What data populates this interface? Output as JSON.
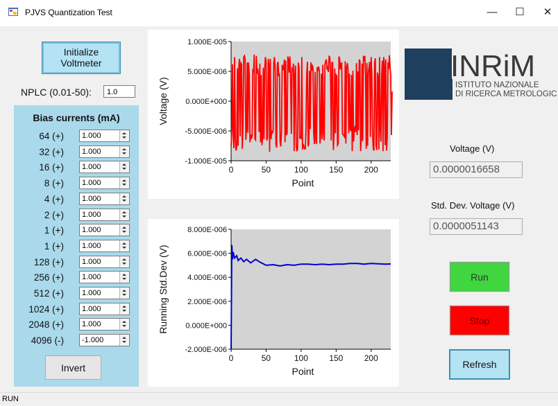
{
  "window": {
    "title": "PJVS Quantization Test",
    "minimize": "—",
    "maximize": "☐",
    "close": "✕"
  },
  "left": {
    "init_button": "Initialize Voltmeter",
    "nplc_label": "NPLC (0.01-50):",
    "nplc_value": "1.0",
    "bias_title": "Bias currents (mA)",
    "bias": [
      {
        "label": "64 (+)",
        "value": "1.000"
      },
      {
        "label": "32 (+)",
        "value": "1.000"
      },
      {
        "label": "16 (+)",
        "value": "1.000"
      },
      {
        "label": "8 (+)",
        "value": "1.000"
      },
      {
        "label": "4 (+)",
        "value": "1.000"
      },
      {
        "label": "2 (+)",
        "value": "1.000"
      },
      {
        "label": "1 (+)",
        "value": "1.000"
      },
      {
        "label": "1 (+)",
        "value": "1.000"
      },
      {
        "label": "128 (+)",
        "value": "1.000"
      },
      {
        "label": "256 (+)",
        "value": "1.000"
      },
      {
        "label": "512 (+)",
        "value": "1.000"
      },
      {
        "label": "1024 (+)",
        "value": "1.000"
      },
      {
        "label": "2048 (+)",
        "value": "1.000"
      },
      {
        "label": "4096 (-)",
        "value": "-1.000"
      }
    ],
    "invert_button": "Invert"
  },
  "right": {
    "logo_text": "INRiM",
    "logo_sub1": "ISTITUTO NAZIONALE",
    "logo_sub2": "DI RICERCA METROLOGICA",
    "voltage_label": "Voltage (V)",
    "voltage_value": "0.0000016658",
    "std_label": "Std. Dev. Voltage (V)",
    "std_value": "0.0000051143",
    "run_button": "Run",
    "stop_button": "Stop",
    "refresh_button": "Refresh"
  },
  "status": {
    "text": "RUN"
  },
  "colors": {
    "voltage_series": "#ff0000",
    "std_series": "#0000cc",
    "plot_bg": "#d3d3d3",
    "panel": "#a9d9eb"
  },
  "chart_data": [
    {
      "type": "line",
      "xlabel": "Point",
      "ylabel": "Voltage (V)",
      "xlim": [
        0,
        228
      ],
      "ylim": [
        -1e-05,
        1e-05
      ],
      "xticks": [
        0,
        50,
        100,
        150,
        200
      ],
      "yticks": [
        "1.000E-005",
        "5.000E-006",
        "0.000E+000",
        "-5.000E-006",
        "-1.000E-005"
      ],
      "series": [
        {
          "values": [
            -7.5e-06,
            -4.8e-06,
            6.2e-06,
            -5.5e-06,
            -7.9e-06,
            7.4e-06,
            -6.7e-06,
            -8.3e-06,
            -7.6e-06,
            5.5e-06,
            -7.5e-06,
            5.8e-06,
            7.1e-06,
            -5.9e-06,
            6.4e-06,
            6.2e-06,
            -8e-06,
            -4.3e-06,
            7.4e-06,
            7.6e-06,
            7e-06,
            -6.5e-06,
            -4.7e-06,
            6.5e-06,
            -5.3e-06,
            6.5e-06,
            4.3e-06,
            -6.9e-06,
            -5.6e-06,
            -6.3e-06,
            -5.8e-06,
            5.4e-06,
            4.8e-06,
            7.8e-06,
            -6.3e-06,
            -6.5e-06,
            7.6e-06,
            4.6e-06,
            5.5e-06,
            4.5e-06,
            -5.2e-06,
            6.3e-06,
            -6.9e-06,
            4.4e-06,
            -7.4e-06,
            -6.1e-06,
            5.6e-06,
            -6.4e-06,
            5.4e-06,
            7.4e-06,
            6.6e-06,
            -6.6e-06,
            -6.1e-06,
            7.1e-06,
            6.2e-06,
            -8.5e-06,
            7.1e-06,
            -6.4e-06,
            -5e-06,
            -5.3e-06,
            -5.1e-06,
            6.4e-06,
            7.4e-06,
            5.2e-06,
            -7.2e-06,
            -7.8e-06,
            6.2e-06,
            6.6e-06,
            4.2e-06,
            4.7e-06,
            -6.8e-06,
            -7.6e-06,
            -5.2e-06,
            6.1e-06,
            5.6e-06,
            5.2e-06,
            7e-06,
            -6.9e-06,
            6.8e-06,
            -5.7e-06,
            -5.4e-06,
            7.5e-06,
            7e-06,
            4.8e-06,
            7.5e-06,
            4.2e-06,
            -5.5e-06,
            5.4e-06,
            5.2e-06,
            6.3e-06,
            -8.4e-06,
            4.6e-06,
            6e-06,
            -7.5e-06,
            -8.4e-06,
            -8e-06,
            6.5e-06,
            5.6e-06,
            -6.3e-06,
            -6e-06,
            -6.2e-06,
            7.4e-06,
            -8.1e-06,
            -7.2e-06,
            -7.6e-06,
            -8e-06,
            -8e-06,
            -4.9e-06,
            4.4e-06,
            6.6e-06,
            -7.6e-06,
            -7e-06,
            5.1e-06,
            -4.7e-06,
            6.5e-06,
            5.1e-06,
            6.1e-06,
            5.5e-06,
            -5.3e-06,
            -7.2e-06,
            4.9e-06,
            -6.5e-06,
            -7.2e-06,
            5.7e-06,
            5.3e-06,
            5.8e-06,
            5.1e-06,
            -7.1e-06,
            -5.3e-06,
            4.6e-06,
            -6.4e-06,
            6.1e-06,
            -5.4e-06,
            -6.6e-06,
            6.2e-06,
            6.7e-06,
            7e-06,
            5.3e-06,
            5.6e-06,
            4.9e-06,
            7.5e-06,
            7.4e-06,
            5e-06,
            -6.6e-06,
            6.5e-06,
            6.5e-06,
            -8.2e-06,
            -5.6e-06,
            5.5e-06,
            -5.4e-06,
            4.4e-06,
            4.2e-06,
            -7.4e-06,
            -7.2e-06,
            7.5e-06,
            7.1e-06,
            5.3e-06,
            6.3e-06,
            6.4e-06,
            -5.5e-06,
            -5.6e-06,
            -5.8e-06,
            -6e-06,
            6.7e-06,
            -7.1e-06,
            5.7e-06,
            6.4e-06,
            5.3e-06,
            -5.4e-06,
            4.6e-06,
            -4.8e-06,
            -4.9e-06,
            4.4e-06,
            -8.4e-06,
            5.1e-06,
            -6.8e-06,
            -4.6e-06,
            -4.3e-06,
            -5.2e-06,
            6.4e-06,
            -5.7e-06,
            5e-06,
            -4.9e-06,
            7e-06,
            6.7e-06,
            -8.4e-06,
            -6.2e-06,
            6.3e-06,
            -6.7e-06,
            7.6e-06,
            6.8e-06,
            7.6e-06,
            4.4e-06,
            -8e-06,
            6.4e-06,
            -7.5e-06,
            4.7e-06,
            5.7e-06,
            6.6e-06,
            -6e-06,
            7.4e-06,
            4.2e-06,
            -5.2e-06,
            -8e-06,
            -8.3e-06,
            6.5e-06,
            7.2e-06,
            -7.4e-06,
            -8.2e-06,
            4.8e-06,
            4.2e-06,
            -8.1e-06,
            7.4e-06,
            -4.8e-06,
            -6.8e-06,
            4.4e-06,
            6.8e-06,
            -8.4e-06,
            7.4e-06,
            6.1e-06,
            -7.4e-06,
            7e-06,
            -8.3e-06,
            -6e-06,
            6.5e-06,
            5.4e-06,
            7.7e-06,
            5.9e-06,
            4.4e-06,
            -5.7e-06,
            1.6e-06
          ]
        }
      ]
    },
    {
      "type": "line",
      "xlabel": "Point",
      "ylabel": "Running Std.Dev (V)",
      "xlim": [
        0,
        228
      ],
      "ylim": [
        -2e-06,
        8e-06
      ],
      "xticks": [
        0,
        50,
        100,
        150,
        200
      ],
      "yticks": [
        "8.000E-006",
        "6.000E-006",
        "4.000E-006",
        "2.000E-006",
        "0.000E+000",
        "-2.000E-006"
      ],
      "series": [
        {
          "x": [
            0,
            1,
            2,
            3,
            5,
            8,
            10,
            14,
            18,
            22,
            28,
            35,
            40,
            50,
            60,
            70,
            80,
            90,
            100,
            110,
            120,
            130,
            140,
            150,
            160,
            170,
            180,
            190,
            200,
            210,
            220,
            228
          ],
          "values": [
            -2e-06,
            6.7e-06,
            5.5e-06,
            6.1e-06,
            5.6e-06,
            5.8e-06,
            5.4e-06,
            5.6e-06,
            5.3e-06,
            5.5e-06,
            5.2e-06,
            5.5e-06,
            5.3e-06,
            5e-06,
            5.05e-06,
            4.95e-06,
            5.05e-06,
            5e-06,
            5.1e-06,
            5.1e-06,
            5.05e-06,
            5.1e-06,
            5.05e-06,
            5.1e-06,
            5.1e-06,
            5.15e-06,
            5.15e-06,
            5.1e-06,
            5.15e-06,
            5.12e-06,
            5.1e-06,
            5.11e-06
          ]
        }
      ]
    }
  ]
}
